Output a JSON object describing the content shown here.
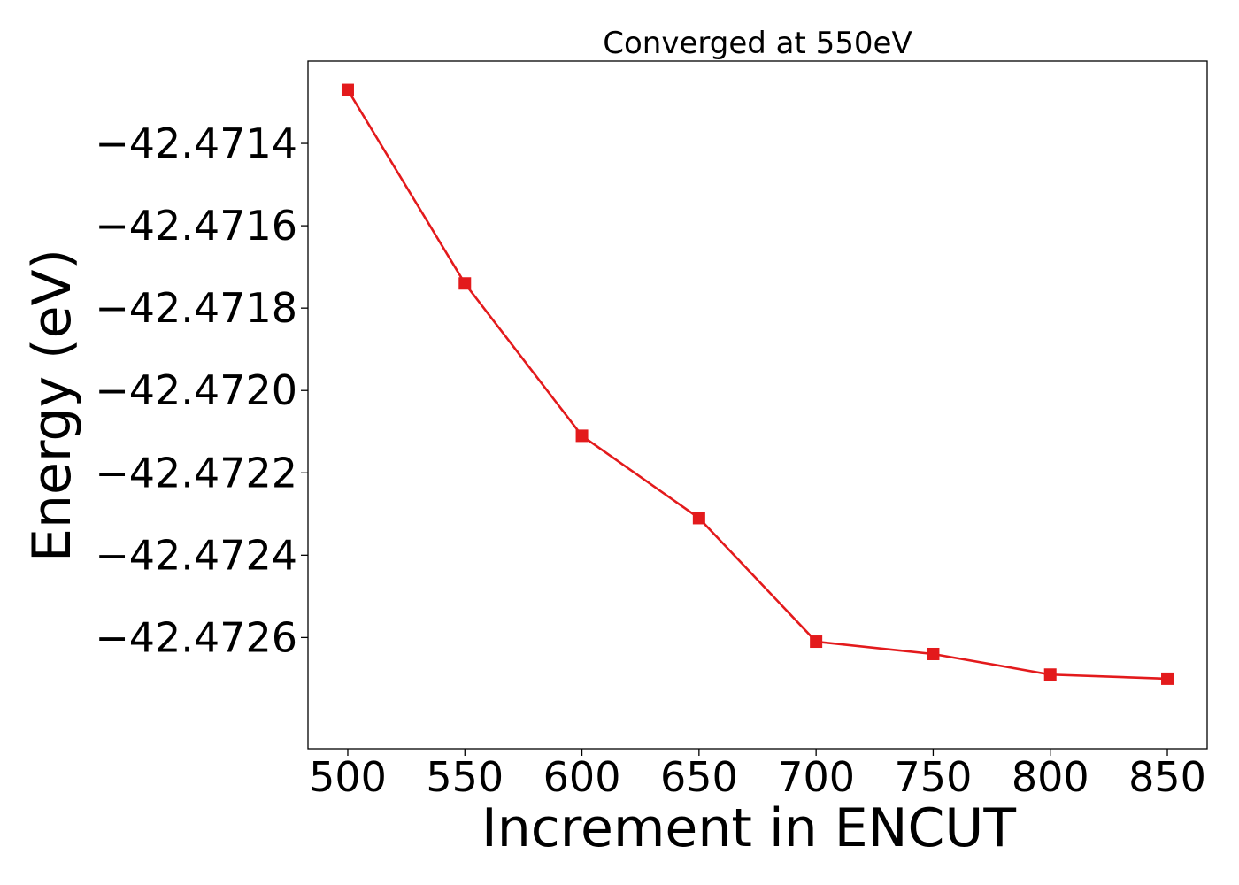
{
  "chart_data": {
    "type": "line",
    "title": "Converged at 550eV",
    "xlabel": "Increment in ENCUT",
    "ylabel": "Energy (eV)",
    "x": [
      500,
      550,
      600,
      650,
      700,
      750,
      800,
      850
    ],
    "series": [
      {
        "values": [
          -42.47127,
          -42.47174,
          -42.47211,
          -42.47231,
          -42.47261,
          -42.47264,
          -42.47269,
          -42.4727
        ],
        "color": "#e31a1c",
        "marker": "square"
      }
    ],
    "xlim": [
      483,
      867
    ],
    "ylim": [
      -42.47287,
      -42.4712
    ],
    "xticks": [
      500,
      550,
      600,
      650,
      700,
      750,
      800,
      850
    ],
    "xtick_labels": [
      "500",
      "550",
      "600",
      "650",
      "700",
      "750",
      "800",
      "850"
    ],
    "yticks": [
      -42.4714,
      -42.4716,
      -42.4718,
      -42.472,
      -42.4722,
      -42.4724,
      -42.4726
    ],
    "ytick_labels": [
      "−42.4714",
      "−42.4716",
      "−42.4718",
      "−42.4720",
      "−42.4722",
      "−42.4724",
      "−42.4726"
    ],
    "grid": false,
    "legend": "none"
  }
}
